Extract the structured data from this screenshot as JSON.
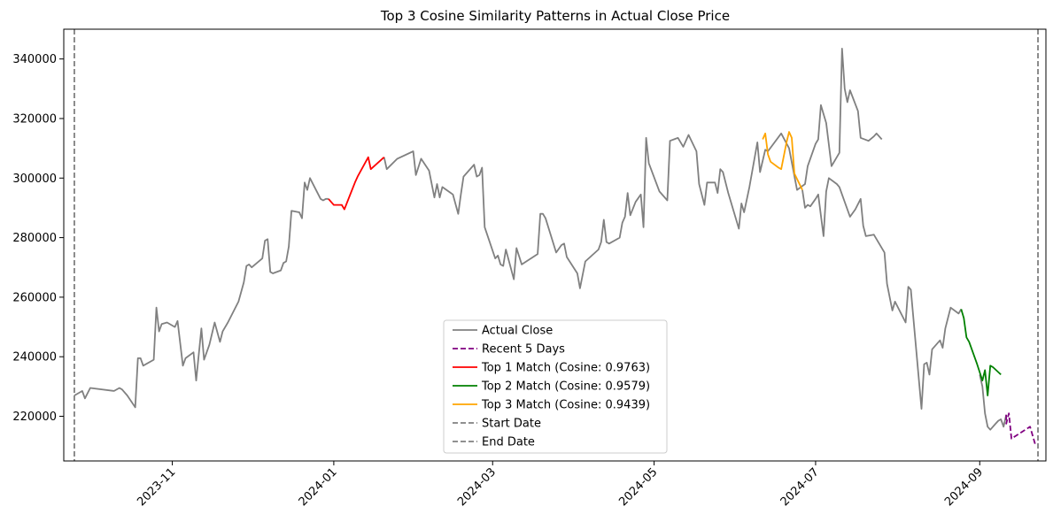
{
  "chart_data": {
    "type": "line",
    "title": "Top 3 Cosine Similarity Patterns in Actual Close Price",
    "xlabel": "",
    "ylabel": "",
    "xlim": [
      "2023-09-21",
      "2024-09-26"
    ],
    "ylim": [
      205000,
      350000
    ],
    "x_ticks": [
      "2023-11",
      "2024-01",
      "2024-03",
      "2024-05",
      "2024-07",
      "2024-09"
    ],
    "y_ticks": [
      220000,
      240000,
      260000,
      280000,
      300000,
      320000,
      340000
    ],
    "y_tick_labels": [
      "220000",
      "240000",
      "260000",
      "280000",
      "300000",
      "320000",
      "340000"
    ],
    "grid": false,
    "legend": {
      "position": "lower-center",
      "entries": [
        {
          "label": "Actual Close",
          "color": "#808080",
          "style": "solid"
        },
        {
          "label": "Recent 5 Days",
          "color": "#800080",
          "style": "dashed"
        },
        {
          "label": "Top 1 Match (Cosine: 0.9763)",
          "color": "#ff0000",
          "style": "solid"
        },
        {
          "label": "Top 2 Match (Cosine: 0.9579)",
          "color": "#008000",
          "style": "solid"
        },
        {
          "label": "Top 3 Match (Cosine: 0.9439)",
          "color": "#ffa500",
          "style": "solid"
        },
        {
          "label": "Start Date",
          "color": "#808080",
          "style": "dashed"
        },
        {
          "label": "End Date",
          "color": "#808080",
          "style": "dashed"
        }
      ]
    },
    "vlines": [
      {
        "name": "Start Date",
        "x": "2023-09-25",
        "color": "#808080",
        "style": "dashed"
      },
      {
        "name": "End Date",
        "x": "2024-09-23",
        "color": "#808080",
        "style": "dashed"
      }
    ],
    "series": [
      {
        "name": "Actual Close",
        "color": "#808080",
        "style": "solid",
        "points": [
          [
            "2023-09-25",
            227000
          ],
          [
            "2023-09-27",
            228000
          ],
          [
            "2023-09-28",
            228500
          ],
          [
            "2023-09-29",
            226000
          ],
          [
            "2023-10-01",
            229500
          ],
          [
            "2023-10-10",
            228500
          ],
          [
            "2023-10-12",
            229500
          ],
          [
            "2023-10-13",
            229000
          ],
          [
            "2023-10-15",
            227000
          ],
          [
            "2023-10-18",
            223000
          ],
          [
            "2023-10-19",
            239500
          ],
          [
            "2023-10-20",
            239500
          ],
          [
            "2023-10-21",
            237000
          ],
          [
            "2023-10-25",
            239000
          ],
          [
            "2023-10-26",
            256500
          ],
          [
            "2023-10-27",
            248500
          ],
          [
            "2023-10-28",
            251000
          ],
          [
            "2023-10-30",
            251500
          ],
          [
            "2023-11-02",
            250000
          ],
          [
            "2023-11-03",
            252000
          ],
          [
            "2023-11-05",
            237000
          ],
          [
            "2023-11-06",
            239500
          ],
          [
            "2023-11-09",
            241500
          ],
          [
            "2023-11-10",
            232000
          ],
          [
            "2023-11-12",
            249500
          ],
          [
            "2023-11-13",
            239000
          ],
          [
            "2023-11-15",
            244000
          ],
          [
            "2023-11-17",
            251500
          ],
          [
            "2023-11-19",
            245000
          ],
          [
            "2023-11-20",
            248500
          ],
          [
            "2023-11-22",
            251500
          ],
          [
            "2023-11-26",
            258500
          ],
          [
            "2023-11-28",
            265000
          ],
          [
            "2023-11-29",
            270500
          ],
          [
            "2023-11-30",
            271000
          ],
          [
            "2023-12-01",
            270000
          ],
          [
            "2023-12-05",
            273000
          ],
          [
            "2023-12-06",
            279000
          ],
          [
            "2023-12-07",
            279500
          ],
          [
            "2023-12-08",
            268500
          ],
          [
            "2023-12-09",
            268000
          ],
          [
            "2023-12-12",
            269000
          ],
          [
            "2023-12-13",
            271500
          ],
          [
            "2023-12-14",
            272000
          ],
          [
            "2023-12-15",
            277000
          ],
          [
            "2023-12-16",
            289000
          ],
          [
            "2023-12-19",
            288500
          ],
          [
            "2023-12-20",
            286500
          ],
          [
            "2023-12-21",
            298500
          ],
          [
            "2023-12-22",
            296000
          ],
          [
            "2023-12-23",
            300000
          ],
          [
            "2023-12-27",
            293000
          ],
          [
            "2023-12-28",
            292500
          ],
          [
            "2023-12-29",
            293000
          ],
          [
            "2023-12-30",
            293000
          ]
        ]
      },
      {
        "name": "Actual Close",
        "color": "#808080",
        "style": "solid",
        "points": [
          [
            "2024-01-20",
            307000
          ],
          [
            "2024-01-21",
            303000
          ],
          [
            "2024-01-25",
            306500
          ],
          [
            "2024-01-31",
            309000
          ],
          [
            "2024-02-01",
            301000
          ],
          [
            "2024-02-03",
            306500
          ],
          [
            "2024-02-06",
            302500
          ],
          [
            "2024-02-08",
            293500
          ],
          [
            "2024-02-09",
            298000
          ],
          [
            "2024-02-10",
            293500
          ],
          [
            "2024-02-11",
            297000
          ],
          [
            "2024-02-15",
            294500
          ],
          [
            "2024-02-17",
            288000
          ],
          [
            "2024-02-18",
            294500
          ],
          [
            "2024-02-19",
            300500
          ],
          [
            "2024-02-23",
            304500
          ],
          [
            "2024-02-24",
            300500
          ],
          [
            "2024-02-25",
            301000
          ],
          [
            "2024-02-26",
            303500
          ],
          [
            "2024-02-27",
            283500
          ],
          [
            "2024-03-02",
            273000
          ],
          [
            "2024-03-03",
            274000
          ],
          [
            "2024-03-04",
            271000
          ],
          [
            "2024-03-05",
            270500
          ],
          [
            "2024-03-06",
            276000
          ],
          [
            "2024-03-09",
            266000
          ],
          [
            "2024-03-10",
            276500
          ],
          [
            "2024-03-12",
            271000
          ],
          [
            "2024-03-18",
            274500
          ],
          [
            "2024-03-19",
            288000
          ],
          [
            "2024-03-20",
            288000
          ],
          [
            "2024-03-21",
            286500
          ],
          [
            "2024-03-25",
            275000
          ],
          [
            "2024-03-27",
            277500
          ],
          [
            "2024-03-28",
            278000
          ],
          [
            "2024-03-29",
            273500
          ],
          [
            "2024-04-02",
            268000
          ],
          [
            "2024-04-03",
            263000
          ],
          [
            "2024-04-05",
            272000
          ],
          [
            "2024-04-10",
            276000
          ],
          [
            "2024-04-11",
            278500
          ],
          [
            "2024-04-12",
            286000
          ],
          [
            "2024-04-13",
            278500
          ],
          [
            "2024-04-14",
            278000
          ],
          [
            "2024-04-18",
            280000
          ],
          [
            "2024-04-19",
            285000
          ],
          [
            "2024-04-20",
            287000
          ],
          [
            "2024-04-21",
            295000
          ],
          [
            "2024-04-22",
            287500
          ],
          [
            "2024-04-24",
            292000
          ],
          [
            "2024-04-26",
            294500
          ],
          [
            "2024-04-27",
            283500
          ],
          [
            "2024-04-28",
            313500
          ],
          [
            "2024-04-29",
            305000
          ],
          [
            "2024-05-03",
            295500
          ],
          [
            "2024-05-06",
            292500
          ],
          [
            "2024-05-07",
            312500
          ],
          [
            "2024-05-10",
            313500
          ],
          [
            "2024-05-12",
            310500
          ],
          [
            "2024-05-14",
            314500
          ],
          [
            "2024-05-17",
            309000
          ],
          [
            "2024-05-18",
            298000
          ],
          [
            "2024-05-20",
            291000
          ],
          [
            "2024-05-21",
            298500
          ],
          [
            "2024-05-24",
            298500
          ],
          [
            "2024-05-25",
            295000
          ],
          [
            "2024-05-26",
            303000
          ],
          [
            "2024-05-27",
            302000
          ],
          [
            "2024-05-29",
            295000
          ],
          [
            "2024-06-02",
            283000
          ],
          [
            "2024-06-03",
            291500
          ],
          [
            "2024-06-04",
            288500
          ],
          [
            "2024-06-06",
            297000
          ],
          [
            "2024-06-09",
            312000
          ],
          [
            "2024-06-10",
            302000
          ],
          [
            "2024-06-12",
            309500
          ],
          [
            "2024-06-13",
            309000
          ],
          [
            "2024-06-18",
            315000
          ],
          [
            "2024-06-21",
            310000
          ],
          [
            "2024-06-24",
            296000
          ],
          [
            "2024-06-27",
            298000
          ],
          [
            "2024-06-28",
            304000
          ],
          [
            "2024-07-01",
            311500
          ],
          [
            "2024-07-02",
            313000
          ],
          [
            "2024-07-03",
            324500
          ],
          [
            "2024-07-05",
            318500
          ],
          [
            "2024-07-07",
            304000
          ],
          [
            "2024-07-10",
            308500
          ],
          [
            "2024-07-11",
            343500
          ],
          [
            "2024-07-12",
            330000
          ],
          [
            "2024-07-13",
            325500
          ],
          [
            "2024-07-14",
            329500
          ],
          [
            "2024-07-17",
            322500
          ],
          [
            "2024-07-18",
            313500
          ],
          [
            "2024-07-21",
            312500
          ],
          [
            "2024-07-23",
            314000
          ],
          [
            "2024-07-24",
            315000
          ],
          [
            "2024-07-26",
            313000
          ]
        ]
      },
      {
        "name": "Actual Close",
        "color": "#808080",
        "style": "solid",
        "points": [
          [
            "2024-06-26",
            296000
          ],
          [
            "2024-06-27",
            290000
          ],
          [
            "2024-06-28",
            291000
          ],
          [
            "2024-06-29",
            290500
          ],
          [
            "2024-07-01",
            293000
          ],
          [
            "2024-07-02",
            294500
          ],
          [
            "2024-07-04",
            280500
          ],
          [
            "2024-07-05",
            295500
          ],
          [
            "2024-07-06",
            300000
          ],
          [
            "2024-07-09",
            298000
          ],
          [
            "2024-07-10",
            297000
          ],
          [
            "2024-07-14",
            287000
          ],
          [
            "2024-07-16",
            289500
          ],
          [
            "2024-07-18",
            293000
          ],
          [
            "2024-07-19",
            284000
          ],
          [
            "2024-07-20",
            280500
          ],
          [
            "2024-07-23",
            281000
          ],
          [
            "2024-07-27",
            275000
          ],
          [
            "2024-07-28",
            264500
          ],
          [
            "2024-07-30",
            255500
          ],
          [
            "2024-07-31",
            258500
          ],
          [
            "2024-08-04",
            251500
          ],
          [
            "2024-08-05",
            263500
          ],
          [
            "2024-08-06",
            262500
          ],
          [
            "2024-08-10",
            222500
          ],
          [
            "2024-08-11",
            237500
          ],
          [
            "2024-08-12",
            238000
          ],
          [
            "2024-08-13",
            234000
          ],
          [
            "2024-08-14",
            242500
          ],
          [
            "2024-08-17",
            245500
          ],
          [
            "2024-08-18",
            243000
          ],
          [
            "2024-08-19",
            249500
          ],
          [
            "2024-08-21",
            256500
          ],
          [
            "2024-08-24",
            254500
          ],
          [
            "2024-08-25",
            256000
          ]
        ]
      },
      {
        "name": "Actual Close",
        "color": "#808080",
        "style": "solid",
        "points": [
          [
            "2024-09-01",
            234000
          ],
          [
            "2024-09-02",
            230000
          ],
          [
            "2024-09-03",
            221000
          ],
          [
            "2024-09-04",
            216500
          ],
          [
            "2024-09-05",
            215500
          ],
          [
            "2024-09-07",
            217500
          ],
          [
            "2024-09-08",
            218500
          ],
          [
            "2024-09-09",
            219000
          ],
          [
            "2024-09-10",
            216500
          ],
          [
            "2024-09-11",
            220500
          ]
        ]
      },
      {
        "name": "Top 1 Match (Cosine: 0.9763)",
        "color": "#ff0000",
        "style": "solid",
        "points": [
          [
            "2023-12-30",
            293000
          ],
          [
            "2024-01-01",
            291000
          ],
          [
            "2024-01-04",
            291000
          ],
          [
            "2024-01-05",
            289500
          ],
          [
            "2024-01-07",
            294000
          ],
          [
            "2024-01-09",
            298500
          ],
          [
            "2024-01-10",
            300500
          ],
          [
            "2024-01-14",
            307000
          ],
          [
            "2024-01-15",
            303000
          ],
          [
            "2024-01-20",
            307000
          ]
        ]
      },
      {
        "name": "Top 2 Match (Cosine: 0.9579)",
        "color": "#008000",
        "style": "solid",
        "points": [
          [
            "2024-08-25",
            256000
          ],
          [
            "2024-08-26",
            253000
          ],
          [
            "2024-08-27",
            246500
          ],
          [
            "2024-08-28",
            245000
          ],
          [
            "2024-08-29",
            242500
          ],
          [
            "2024-08-31",
            237500
          ],
          [
            "2024-09-02",
            232000
          ],
          [
            "2024-09-03",
            235500
          ],
          [
            "2024-09-04",
            227000
          ],
          [
            "2024-09-05",
            237000
          ],
          [
            "2024-09-06",
            236500
          ],
          [
            "2024-09-09",
            234000
          ]
        ]
      },
      {
        "name": "Top 3 Match (Cosine: 0.9439)",
        "color": "#ffa500",
        "style": "solid",
        "points": [
          [
            "2024-06-11",
            313000
          ],
          [
            "2024-06-12",
            315000
          ],
          [
            "2024-06-13",
            308000
          ],
          [
            "2024-06-14",
            305500
          ],
          [
            "2024-06-17",
            303500
          ],
          [
            "2024-06-18",
            303000
          ],
          [
            "2024-06-20",
            312000
          ],
          [
            "2024-06-21",
            315500
          ],
          [
            "2024-06-22",
            313500
          ],
          [
            "2024-06-23",
            301500
          ],
          [
            "2024-06-26",
            296000
          ]
        ]
      },
      {
        "name": "Recent 5 Days",
        "color": "#800080",
        "style": "dashed",
        "points": [
          [
            "2024-09-11",
            220500
          ],
          [
            "2024-09-11",
            217500
          ],
          [
            "2024-09-12",
            221000
          ],
          [
            "2024-09-13",
            212500
          ],
          [
            "2024-09-20",
            216500
          ],
          [
            "2024-09-22",
            210500
          ]
        ]
      }
    ]
  }
}
